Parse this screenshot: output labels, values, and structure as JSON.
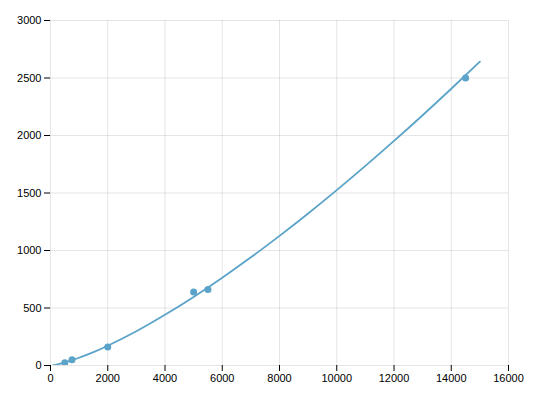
{
  "chart_data": {
    "type": "scatter",
    "series": [
      {
        "type": "line",
        "color": "#5ba3c9",
        "x": [
          100,
          250,
          500,
          1000,
          1500,
          2000,
          3000,
          4000,
          5000,
          6000,
          7000,
          8000,
          9000,
          10000,
          11000,
          12000,
          13000,
          14000,
          15000
        ],
        "values": [
          2.974,
          10.293,
          26.33,
          67.35,
          116.66,
          172.28,
          298.43,
          440.69,
          596.28,
          763.38,
          940.71,
          1127.29,
          1322.35,
          1525.27,
          1735.54,
          1952.72,
          2176.42,
          2406.32,
          2642.13
        ]
      },
      {
        "type": "scatter",
        "color": "#5ba3c9",
        "x": [
          500,
          750,
          2000,
          5000,
          5500,
          14500
        ],
        "values": [
          25,
          50,
          160,
          640,
          660,
          2500
        ]
      }
    ],
    "xlim": [
      0,
      16000
    ],
    "ylim": [
      0,
      3000
    ],
    "xticks": [
      0,
      2000,
      4000,
      6000,
      8000,
      10000,
      12000,
      14000,
      16000
    ],
    "yticks": [
      0,
      500,
      1000,
      1500,
      2000,
      2500,
      3000
    ],
    "grid": true
  }
}
